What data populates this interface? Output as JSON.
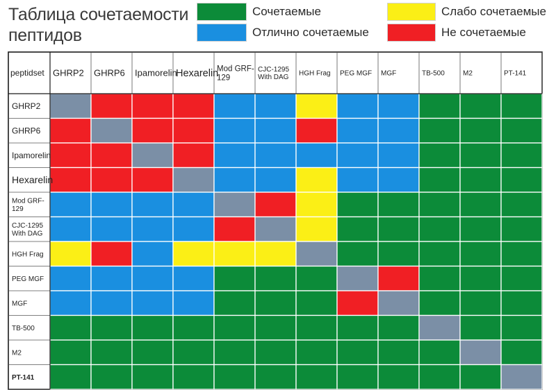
{
  "chart_data": {
    "type": "heatmap",
    "title": "Таблица сочетаемости пептидов",
    "corner_label": "peptidset",
    "legend": [
      {
        "key": "G",
        "label": "Сочетаемые",
        "color": "#0c8b39"
      },
      {
        "key": "B",
        "label": "Отлично сочетаемые",
        "color": "#1a8fe0"
      },
      {
        "key": "Y",
        "label": "Слабо сочетаемые",
        "color": "#fbef16"
      },
      {
        "key": "R",
        "label": "Не сочетаемые",
        "color": "#f01f24"
      }
    ],
    "self_color": "#7b8fa6",
    "columns": [
      "GHRP2",
      "GHRP6",
      "Ipamorelin",
      "Hexarelin",
      "Mod GRF-129",
      "CJC-1295 With DAG",
      "HGH Frag",
      "PEG MGF",
      "MGF",
      "TB-500",
      "M2",
      "PT-141"
    ],
    "rows": [
      "GHRP2",
      "GHRP6",
      "Ipamorelin",
      "Hexarelin",
      "Mod GRF-129",
      "CJC-1295 With DAG",
      "HGH Frag",
      "PEG MGF",
      "MGF",
      "TB-500",
      "M2",
      "PT-141"
    ],
    "matrix": [
      [
        "S",
        "R",
        "R",
        "R",
        "B",
        "B",
        "Y",
        "B",
        "B",
        "G",
        "G",
        "G"
      ],
      [
        "R",
        "S",
        "R",
        "R",
        "B",
        "B",
        "R",
        "B",
        "B",
        "G",
        "G",
        "G"
      ],
      [
        "R",
        "R",
        "S",
        "R",
        "B",
        "B",
        "B",
        "B",
        "B",
        "G",
        "G",
        "G"
      ],
      [
        "R",
        "R",
        "R",
        "S",
        "B",
        "B",
        "Y",
        "B",
        "B",
        "G",
        "G",
        "G"
      ],
      [
        "B",
        "B",
        "B",
        "B",
        "S",
        "R",
        "Y",
        "G",
        "G",
        "G",
        "G",
        "G"
      ],
      [
        "B",
        "B",
        "B",
        "B",
        "R",
        "S",
        "Y",
        "G",
        "G",
        "G",
        "G",
        "G"
      ],
      [
        "Y",
        "R",
        "B",
        "Y",
        "Y",
        "Y",
        "S",
        "G",
        "G",
        "G",
        "G",
        "G"
      ],
      [
        "B",
        "B",
        "B",
        "B",
        "G",
        "G",
        "G",
        "S",
        "R",
        "G",
        "G",
        "G"
      ],
      [
        "B",
        "B",
        "B",
        "B",
        "G",
        "G",
        "G",
        "R",
        "S",
        "G",
        "G",
        "G"
      ],
      [
        "G",
        "G",
        "G",
        "G",
        "G",
        "G",
        "G",
        "G",
        "G",
        "S",
        "G",
        "G"
      ],
      [
        "G",
        "G",
        "G",
        "G",
        "G",
        "G",
        "G",
        "G",
        "G",
        "G",
        "S",
        "G"
      ],
      [
        "G",
        "G",
        "G",
        "G",
        "G",
        "G",
        "G",
        "G",
        "G",
        "G",
        "G",
        "S"
      ]
    ]
  }
}
